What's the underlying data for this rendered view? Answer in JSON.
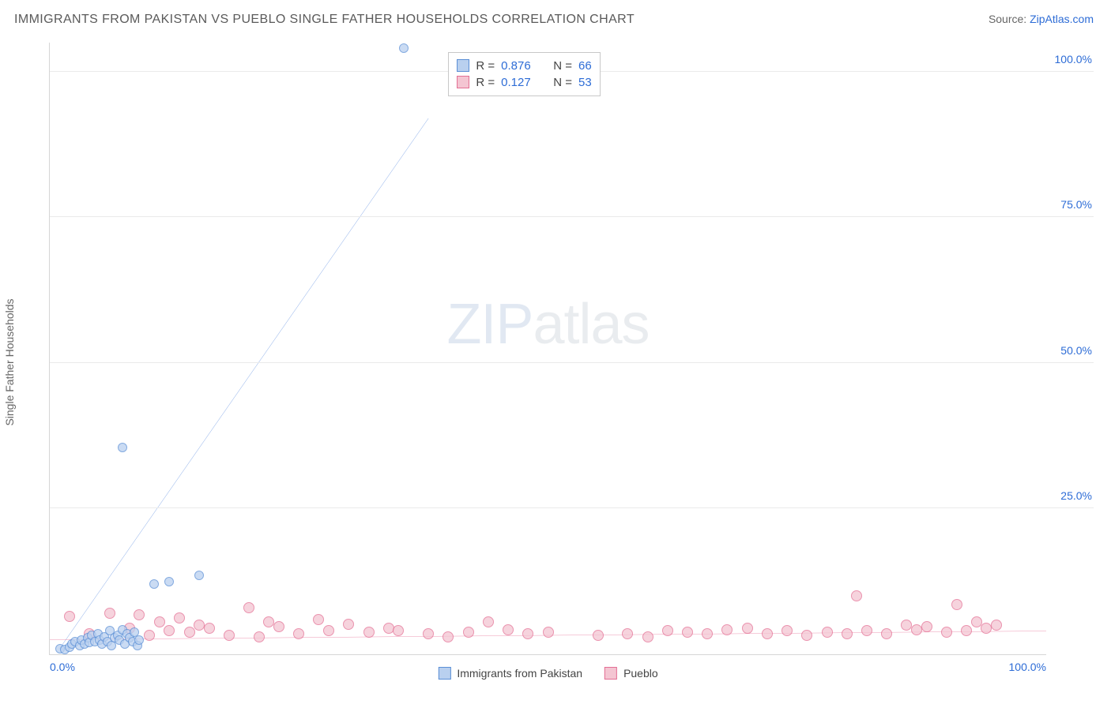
{
  "title": "IMMIGRANTS FROM PAKISTAN VS PUEBLO SINGLE FATHER HOUSEHOLDS CORRELATION CHART",
  "source_label": "Source:",
  "source_name": "ZipAtlas.com",
  "ylabel": "Single Father Households",
  "watermark_bold": "ZIP",
  "watermark_thin": "atlas",
  "chart": {
    "type": "scatter",
    "xlim": [
      0,
      100
    ],
    "ylim": [
      0,
      105
    ],
    "yticks": [
      25,
      50,
      75,
      100
    ],
    "ytick_labels": [
      "25.0%",
      "50.0%",
      "75.0%",
      "100.0%"
    ],
    "xticks": [
      0,
      100
    ],
    "xtick_labels": [
      "0.0%",
      "100.0%"
    ],
    "grid_color": "#eaeaea",
    "axis_color": "#d6d6d6",
    "background": "#ffffff",
    "series": [
      {
        "name": "Immigrants from Pakistan",
        "fill": "#b9d0ef",
        "stroke": "#5b8fd6",
        "marker_r": 6,
        "r_value": "0.876",
        "n_value": "66",
        "trend": {
          "x1": 1,
          "y1": 1,
          "x2": 38,
          "y2": 92,
          "color": "#2d6cd6",
          "width": 2
        },
        "points": [
          [
            1,
            1
          ],
          [
            1.5,
            0.8
          ],
          [
            2,
            1.2
          ],
          [
            2.2,
            1.8
          ],
          [
            2.5,
            2.2
          ],
          [
            3,
            1.5
          ],
          [
            3.2,
            2.5
          ],
          [
            3.5,
            1.8
          ],
          [
            3.8,
            2.8
          ],
          [
            4,
            2
          ],
          [
            4.2,
            3.2
          ],
          [
            4.5,
            2.2
          ],
          [
            4.8,
            3.5
          ],
          [
            5,
            2.5
          ],
          [
            5.2,
            1.8
          ],
          [
            5.5,
            3
          ],
          [
            5.8,
            2.2
          ],
          [
            6,
            4
          ],
          [
            6.2,
            1.5
          ],
          [
            6.5,
            2.8
          ],
          [
            6.8,
            3.2
          ],
          [
            7,
            2.5
          ],
          [
            7.3,
            4.2
          ],
          [
            7.5,
            1.8
          ],
          [
            7.8,
            3.5
          ],
          [
            8,
            2.8
          ],
          [
            8.3,
            2.2
          ],
          [
            8.5,
            3.8
          ],
          [
            8.8,
            1.5
          ],
          [
            9,
            2.5
          ],
          [
            7.3,
            35.5
          ],
          [
            10.5,
            12
          ],
          [
            12,
            12.5
          ],
          [
            15,
            13.5
          ],
          [
            35.5,
            104
          ]
        ]
      },
      {
        "name": "Pueblo",
        "fill": "#f4c5d2",
        "stroke": "#e36f94",
        "marker_r": 7,
        "r_value": "0.127",
        "n_value": "53",
        "trend": {
          "x1": 0,
          "y1": 2.5,
          "x2": 100,
          "y2": 4,
          "color": "#e05080",
          "width": 2
        },
        "points": [
          [
            2,
            6.5
          ],
          [
            4,
            3.5
          ],
          [
            6,
            7
          ],
          [
            8,
            4.5
          ],
          [
            9,
            6.8
          ],
          [
            10,
            3.2
          ],
          [
            11,
            5.5
          ],
          [
            12,
            4
          ],
          [
            13,
            6.2
          ],
          [
            14,
            3.8
          ],
          [
            15,
            5
          ],
          [
            16,
            4.5
          ],
          [
            18,
            3.2
          ],
          [
            20,
            8
          ],
          [
            21,
            3
          ],
          [
            22,
            5.5
          ],
          [
            23,
            4.8
          ],
          [
            25,
            3.5
          ],
          [
            27,
            6
          ],
          [
            28,
            4
          ],
          [
            30,
            5.2
          ],
          [
            32,
            3.8
          ],
          [
            34,
            4.5
          ],
          [
            35,
            4
          ],
          [
            38,
            3.5
          ],
          [
            40,
            3
          ],
          [
            42,
            3.8
          ],
          [
            44,
            5.5
          ],
          [
            46,
            4.2
          ],
          [
            48,
            3.5
          ],
          [
            50,
            3.8
          ],
          [
            55,
            3.2
          ],
          [
            58,
            3.5
          ],
          [
            60,
            3
          ],
          [
            62,
            4
          ],
          [
            64,
            3.8
          ],
          [
            66,
            3.5
          ],
          [
            68,
            4.2
          ],
          [
            70,
            4.5
          ],
          [
            72,
            3.5
          ],
          [
            74,
            4
          ],
          [
            76,
            3.2
          ],
          [
            78,
            3.8
          ],
          [
            80,
            3.5
          ],
          [
            81,
            10
          ],
          [
            82,
            4
          ],
          [
            84,
            3.5
          ],
          [
            86,
            5
          ],
          [
            87,
            4.2
          ],
          [
            88,
            4.8
          ],
          [
            90,
            3.8
          ],
          [
            91,
            8.5
          ],
          [
            92,
            4
          ],
          [
            93,
            5.5
          ],
          [
            94,
            4.5
          ],
          [
            95,
            5
          ]
        ]
      }
    ],
    "legend_box": {
      "left_pct": 40,
      "top_pct": 1.5
    },
    "stat_labels": {
      "r": "R =",
      "n": "N ="
    }
  },
  "bottom_legend": [
    "Immigrants from Pakistan",
    "Pueblo"
  ]
}
